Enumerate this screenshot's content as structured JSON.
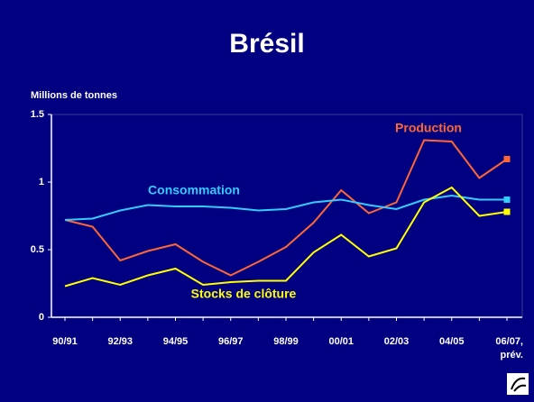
{
  "chart_data": {
    "type": "line",
    "title": "Brésil",
    "ylabel": "Millions de tonnes",
    "categories": [
      "90/91",
      null,
      "92/93",
      null,
      "94/95",
      null,
      "96/97",
      null,
      "98/99",
      null,
      "00/01",
      null,
      "02/03",
      null,
      "04/05",
      null,
      "06/07, prév."
    ],
    "series": [
      {
        "name": "Production",
        "color": "#ff6633",
        "values": [
          0.72,
          0.67,
          0.42,
          0.49,
          0.54,
          0.41,
          0.31,
          0.41,
          0.52,
          0.7,
          0.94,
          0.77,
          0.85,
          1.31,
          1.3,
          1.03,
          1.17
        ]
      },
      {
        "name": "Consommation",
        "color": "#33ccff",
        "values": [
          0.72,
          0.73,
          0.79,
          0.83,
          0.82,
          0.82,
          0.81,
          0.79,
          0.8,
          0.85,
          0.87,
          0.83,
          0.8,
          0.87,
          0.9,
          0.87,
          0.87
        ]
      },
      {
        "name": "Stocks de clôture",
        "color": "#ffff00",
        "values": [
          0.23,
          0.29,
          0.24,
          0.31,
          0.36,
          0.24,
          0.26,
          0.27,
          0.27,
          0.48,
          0.61,
          0.45,
          0.51,
          0.85,
          0.96,
          0.75,
          0.78
        ]
      }
    ],
    "ylim": [
      0,
      1.5
    ],
    "yticks": [
      0,
      0.5,
      1,
      1.5
    ]
  }
}
